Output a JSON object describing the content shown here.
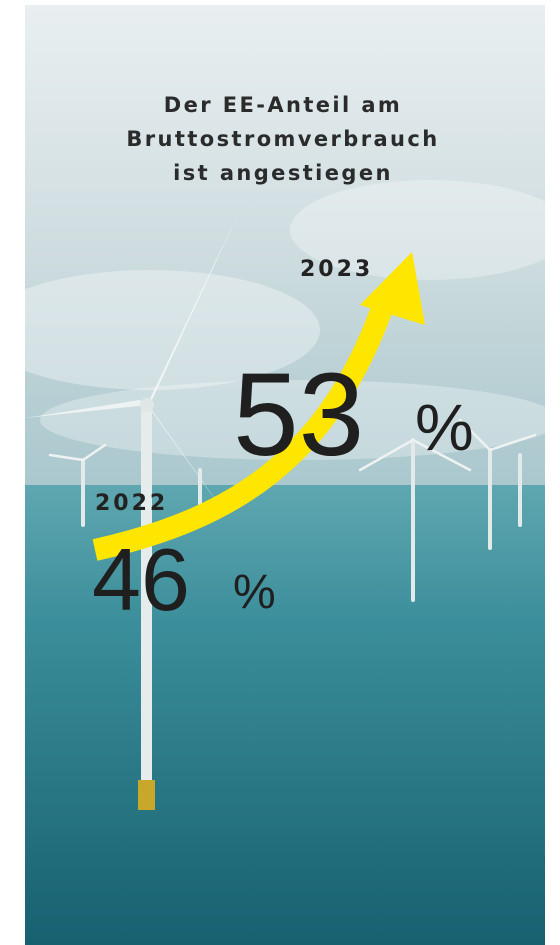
{
  "title_lines": [
    "Der EE-Anteil am",
    "Bruttostromverbrauch",
    "ist angestiegen"
  ],
  "items": [
    {
      "year": "2022",
      "value": 46,
      "unit": "%"
    },
    {
      "year": "2023",
      "value": 53,
      "unit": "%"
    }
  ]
}
